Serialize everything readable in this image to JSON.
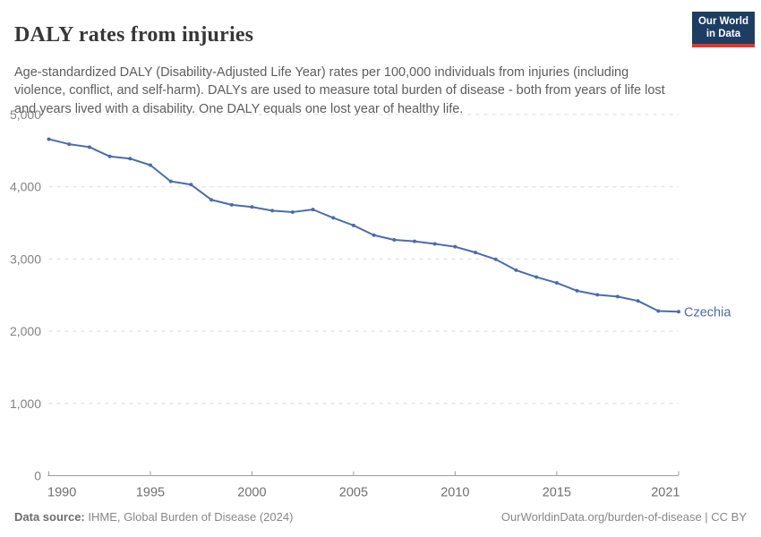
{
  "header": {
    "title": "DALY rates from injuries",
    "subtitle": "Age-standardized DALY (Disability-Adjusted Life Year) rates per 100,000 individuals from injuries (including violence, conflict, and self-harm). DALYs are used to measure total burden of disease - both from years of life lost and years lived with a disability. One DALY equals one lost year of healthy life.",
    "logo": {
      "line1": "Our World",
      "line2": "in Data",
      "bg_color": "#1d3d63",
      "accent_color": "#dc3a2f"
    }
  },
  "chart_data": {
    "type": "line",
    "title": "DALY rates from injuries",
    "xlabel": "",
    "ylabel": "",
    "xlim": [
      1990,
      2021
    ],
    "ylim": [
      0,
      5000
    ],
    "grid": "horizontal-dashed",
    "legend_position": "end-of-line-label",
    "x_ticks": [
      1990,
      1995,
      2000,
      2005,
      2010,
      2015,
      2021
    ],
    "y_ticks": [
      0,
      1000,
      2000,
      3000,
      4000,
      5000
    ],
    "y_tick_labels": [
      "0",
      "1,000",
      "2,000",
      "3,000",
      "4,000",
      "5,000"
    ],
    "x": [
      1990,
      1991,
      1992,
      1993,
      1994,
      1995,
      1996,
      1997,
      1998,
      1999,
      2000,
      2001,
      2002,
      2003,
      2004,
      2005,
      2006,
      2007,
      2008,
      2009,
      2010,
      2011,
      2012,
      2013,
      2014,
      2015,
      2016,
      2017,
      2018,
      2019,
      2020,
      2021
    ],
    "series": [
      {
        "name": "Czechia",
        "color": "#4c6bac",
        "values": [
          4660,
          4590,
          4550,
          4420,
          4390,
          4300,
          4075,
          4030,
          3820,
          3750,
          3720,
          3670,
          3650,
          3685,
          3570,
          3465,
          3330,
          3265,
          3245,
          3210,
          3170,
          3090,
          2995,
          2845,
          2750,
          2670,
          2560,
          2505,
          2480,
          2420,
          2280,
          2270
        ]
      }
    ],
    "style": {
      "grid_color": "#dbdbdb",
      "axis_color": "#9e9e9e",
      "y_label_color": "#828282",
      "x_label_color": "#6f6f6f"
    }
  },
  "footer": {
    "source_label": "Data source:",
    "source_value": " IHME, Global Burden of Disease (2024)",
    "link": "OurWorldinData.org/burden-of-disease | CC BY"
  }
}
